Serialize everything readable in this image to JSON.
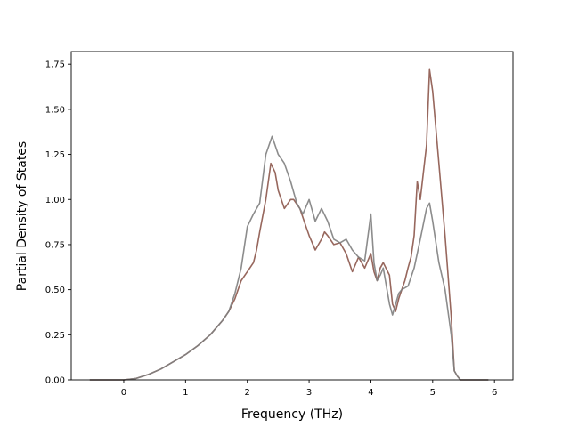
{
  "chart_data": {
    "type": "line",
    "title": "",
    "xlabel": "Frequency (THz)",
    "ylabel": "Partial Density of States",
    "xlim": [
      -0.85,
      6.3
    ],
    "ylim": [
      0,
      1.82
    ],
    "xticks": [
      0,
      1,
      2,
      3,
      4,
      5,
      6
    ],
    "xtick_labels": [
      "0",
      "1",
      "2",
      "3",
      "4",
      "5",
      "6"
    ],
    "yticks": [
      0.0,
      0.25,
      0.5,
      0.75,
      1.0,
      1.25,
      1.5,
      1.75
    ],
    "ytick_labels": [
      "0.00",
      "0.25",
      "0.50",
      "0.75",
      "1.00",
      "1.25",
      "1.50",
      "1.75"
    ],
    "grid": false,
    "legend": "none",
    "series": [
      {
        "color": "#8c564b",
        "x": [
          -0.55,
          0.0,
          0.2,
          0.4,
          0.6,
          0.8,
          1.0,
          1.2,
          1.4,
          1.6,
          1.7,
          1.8,
          1.9,
          2.0,
          2.1,
          2.15,
          2.2,
          2.3,
          2.38,
          2.45,
          2.5,
          2.6,
          2.7,
          2.75,
          2.85,
          2.95,
          3.0,
          3.1,
          3.2,
          3.25,
          3.3,
          3.4,
          3.5,
          3.6,
          3.7,
          3.8,
          3.9,
          4.0,
          4.05,
          4.1,
          4.15,
          4.2,
          4.3,
          4.35,
          4.4,
          4.45,
          4.5,
          4.55,
          4.6,
          4.65,
          4.7,
          4.75,
          4.8,
          4.9,
          4.95,
          5.0,
          5.1,
          5.2,
          5.3,
          5.35,
          5.4,
          5.45,
          5.5,
          5.9
        ],
        "values": [
          0.0,
          0.0,
          0.008,
          0.03,
          0.06,
          0.1,
          0.14,
          0.19,
          0.25,
          0.33,
          0.38,
          0.45,
          0.55,
          0.6,
          0.65,
          0.72,
          0.82,
          1.0,
          1.2,
          1.15,
          1.05,
          0.95,
          1.0,
          1.0,
          0.95,
          0.85,
          0.8,
          0.72,
          0.78,
          0.82,
          0.8,
          0.75,
          0.76,
          0.7,
          0.6,
          0.68,
          0.62,
          0.7,
          0.6,
          0.55,
          0.62,
          0.65,
          0.58,
          0.42,
          0.38,
          0.45,
          0.5,
          0.55,
          0.62,
          0.68,
          0.8,
          1.1,
          1.0,
          1.3,
          1.72,
          1.6,
          1.2,
          0.8,
          0.35,
          0.05,
          0.02,
          0.0,
          0.0,
          0.0
        ]
      },
      {
        "color": "#7f7f7f",
        "x": [
          -0.55,
          0.0,
          0.2,
          0.4,
          0.6,
          0.8,
          1.0,
          1.2,
          1.4,
          1.6,
          1.7,
          1.8,
          1.9,
          2.0,
          2.1,
          2.2,
          2.3,
          2.4,
          2.5,
          2.6,
          2.7,
          2.8,
          2.9,
          3.0,
          3.1,
          3.2,
          3.3,
          3.4,
          3.5,
          3.6,
          3.7,
          3.8,
          3.9,
          4.0,
          4.05,
          4.1,
          4.15,
          4.2,
          4.3,
          4.35,
          4.4,
          4.45,
          4.5,
          4.6,
          4.7,
          4.8,
          4.9,
          4.95,
          5.0,
          5.1,
          5.2,
          5.3,
          5.35,
          5.4,
          5.45,
          5.5,
          5.9
        ],
        "values": [
          0.0,
          0.0,
          0.008,
          0.03,
          0.06,
          0.1,
          0.14,
          0.19,
          0.25,
          0.33,
          0.38,
          0.48,
          0.62,
          0.85,
          0.92,
          0.98,
          1.25,
          1.35,
          1.25,
          1.2,
          1.1,
          0.98,
          0.92,
          1.0,
          0.88,
          0.95,
          0.88,
          0.78,
          0.76,
          0.78,
          0.72,
          0.68,
          0.66,
          0.92,
          0.65,
          0.55,
          0.58,
          0.62,
          0.42,
          0.36,
          0.42,
          0.48,
          0.5,
          0.52,
          0.62,
          0.78,
          0.95,
          0.98,
          0.88,
          0.65,
          0.5,
          0.25,
          0.05,
          0.02,
          0.0,
          0.0,
          0.0
        ]
      }
    ]
  }
}
